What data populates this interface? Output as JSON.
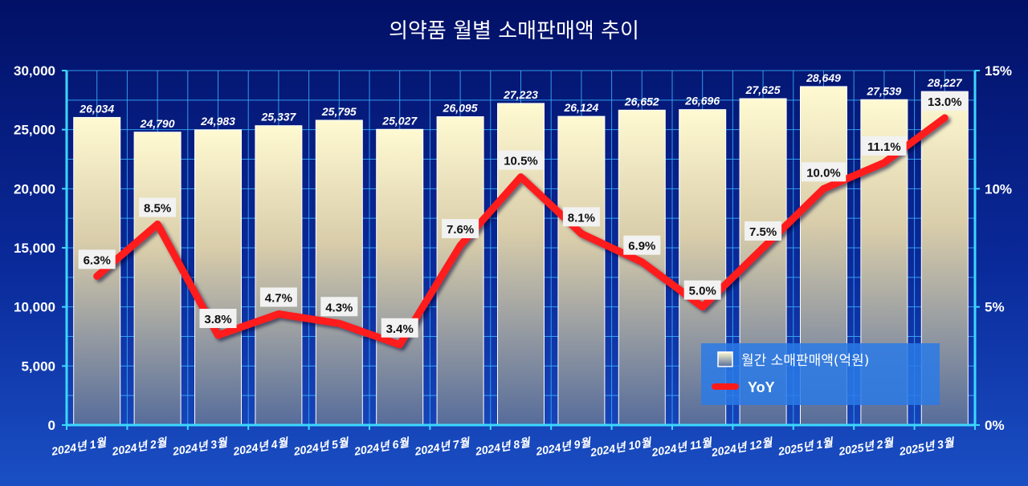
{
  "chart_data": {
    "type": "bar",
    "title": "의약품 월별 소매판매액 추이",
    "categories": [
      "2024년 1월",
      "2024년 2월",
      "2024년 3월",
      "2024년 4월",
      "2024년 5월",
      "2024년 6월",
      "2024년 7월",
      "2024년 8월",
      "2024년 9월",
      "2024년 10월",
      "2024년 11월",
      "2024년 12월",
      "2025년 1월",
      "2025년 2월",
      "2025년 3월"
    ],
    "series": [
      {
        "name": "월간 소매판매액(억원)",
        "type": "bar",
        "axis": "left",
        "values": [
          26034,
          24790,
          24983,
          25337,
          25795,
          25027,
          26095,
          27223,
          26124,
          26652,
          26696,
          27625,
          28649,
          27539,
          28227
        ],
        "labels": [
          "26,034",
          "24,790",
          "24,983",
          "25,337",
          "25,795",
          "25,027",
          "26,095",
          "27,223",
          "26,124",
          "26,652",
          "26,696",
          "27,625",
          "28,649",
          "27,539",
          "28,227"
        ]
      },
      {
        "name": "YoY",
        "type": "line",
        "axis": "right",
        "values": [
          6.3,
          8.5,
          3.8,
          4.7,
          4.3,
          3.4,
          7.6,
          10.5,
          8.1,
          6.9,
          5.0,
          7.5,
          10.0,
          11.1,
          13.0
        ],
        "labels": [
          "6.3%",
          "8.5%",
          "3.8%",
          "4.7%",
          "4.3%",
          "3.4%",
          "7.6%",
          "10.5%",
          "8.1%",
          "6.9%",
          "5.0%",
          "7.5%",
          "10.0%",
          "11.1%",
          "13.0%"
        ]
      }
    ],
    "ylim": [
      0,
      30000
    ],
    "y_ticks": [
      0,
      5000,
      10000,
      15000,
      20000,
      25000,
      30000
    ],
    "y_tick_labels": [
      "0",
      "5,000",
      "10,000",
      "15,000",
      "20,000",
      "25,000",
      "30,000"
    ],
    "y2lim": [
      0,
      15
    ],
    "y2_ticks": [
      0,
      5,
      10,
      15
    ],
    "y2_tick_labels": [
      "0%",
      "5%",
      "10%",
      "15%"
    ],
    "grid": true,
    "legend": "bottom-right",
    "colors": {
      "line": "#ff1a1a",
      "bar_top": "#fffad2",
      "bar_bottom": "#566c9a",
      "grid": "#3bb0ff",
      "axis": "#3bd8ff"
    }
  }
}
